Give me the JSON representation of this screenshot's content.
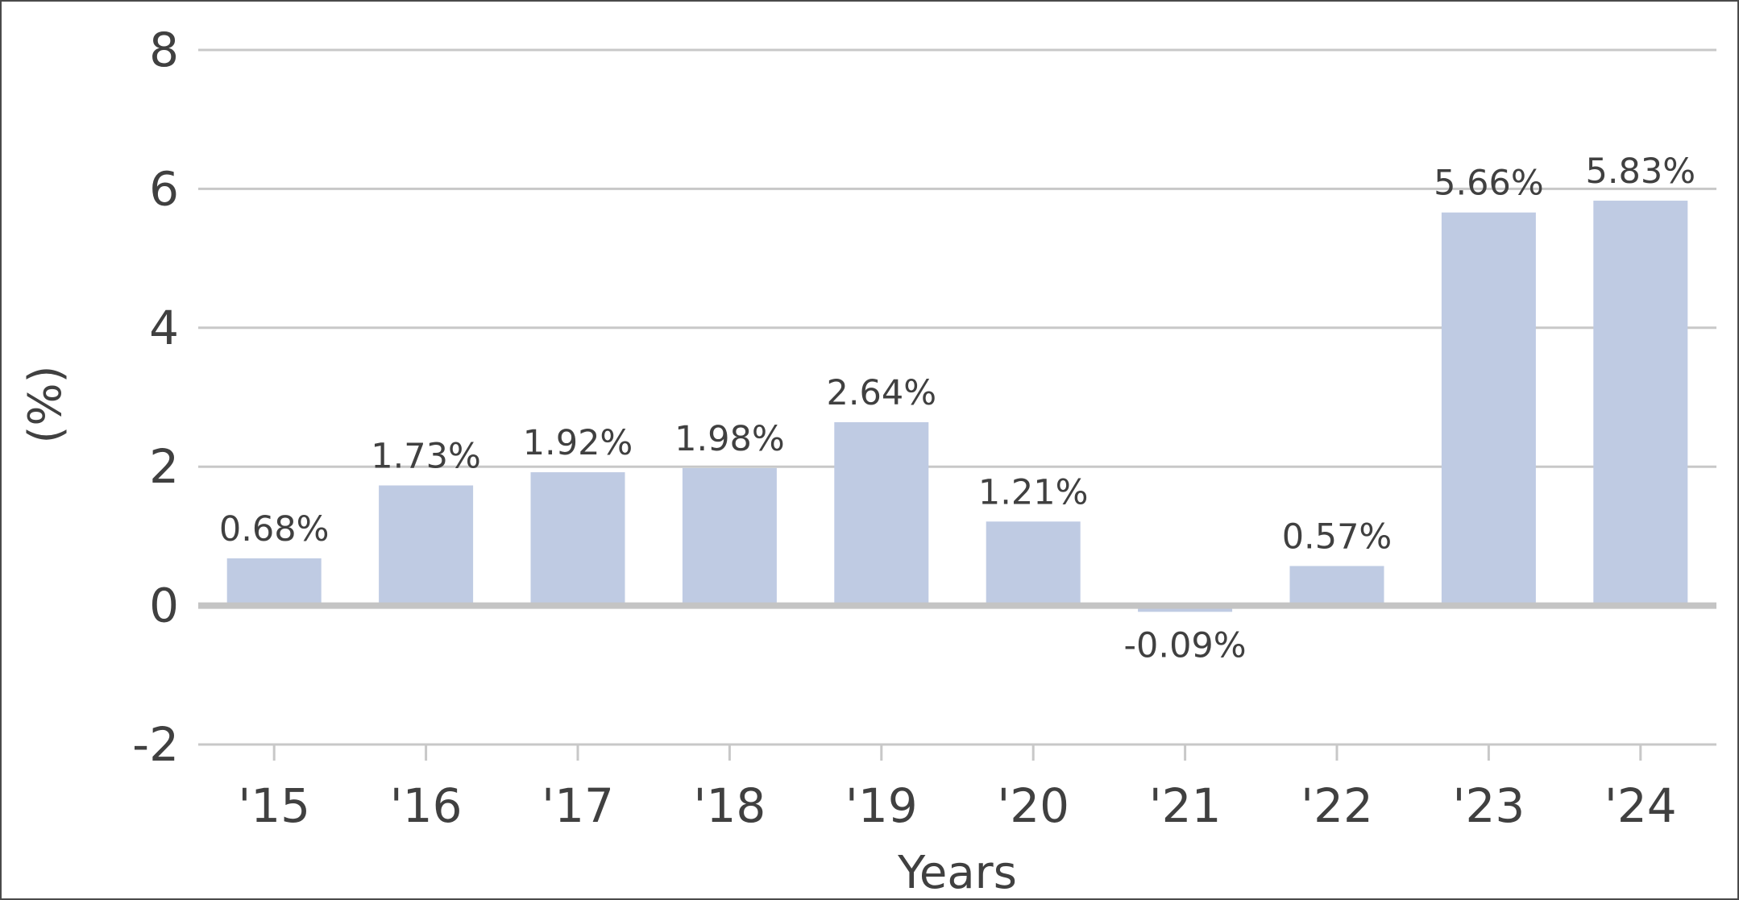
{
  "chart_data": {
    "type": "bar",
    "categories": [
      "'15",
      "'16",
      "'17",
      "'18",
      "'19",
      "'20",
      "'21",
      "'22",
      "'23",
      "'24"
    ],
    "values": [
      0.68,
      1.73,
      1.92,
      1.98,
      2.64,
      1.21,
      -0.09,
      0.57,
      5.66,
      5.83
    ],
    "data_labels": [
      "0.68%",
      "1.73%",
      "1.92%",
      "1.98%",
      "2.64%",
      "1.21%",
      "-0.09%",
      "0.57%",
      "5.66%",
      "5.83%"
    ],
    "xlabel": "Years",
    "ylabel": "(%)",
    "ylim": [
      -2,
      8
    ],
    "yticks": [
      -2,
      0,
      2,
      4,
      6,
      8
    ],
    "ytick_labels": [
      "-2",
      "0",
      "2",
      "4",
      "6",
      "8"
    ],
    "grid": true,
    "legend": "none",
    "colors": {
      "bar": "#bfcbe3",
      "grid": "#c8c8c8",
      "zero_line": "#c4c4c4",
      "text": "#404040",
      "border": "#4a4a4a"
    }
  }
}
